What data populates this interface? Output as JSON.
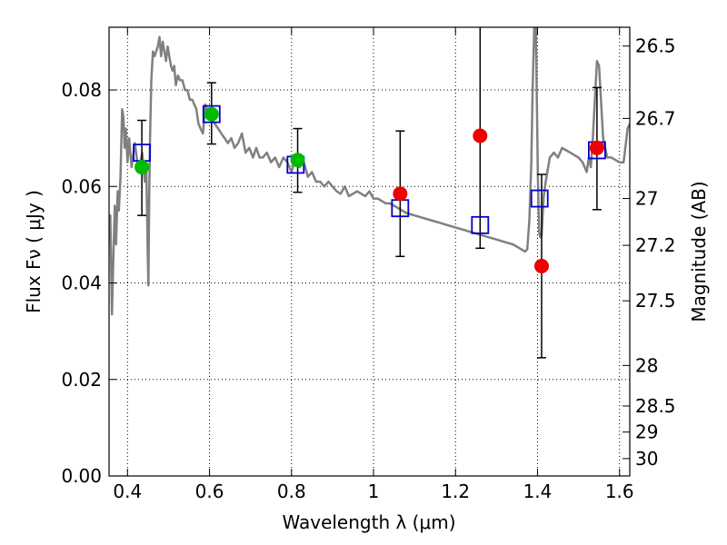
{
  "chart_data": {
    "type": "scatter",
    "xlabel": "Wavelength  λ (μm)",
    "ylabel": "Flux  Fν  ( μJy )",
    "ylabel_right": "Magnitude (AB)",
    "xlim": [
      0.355,
      1.625
    ],
    "ylim": [
      0.0,
      0.093
    ],
    "grid": true,
    "x_ticks": [
      0.4,
      0.6,
      0.8,
      1.0,
      1.2,
      1.4,
      1.6
    ],
    "x_tick_labels": [
      "0.4",
      "0.6",
      "0.8",
      "1",
      "1.2",
      "1.4",
      "1.6"
    ],
    "y_ticks": [
      0.0,
      0.02,
      0.04,
      0.06,
      0.08
    ],
    "y_tick_labels": [
      "0.00",
      "0.02",
      "0.04",
      "0.06",
      "0.08"
    ],
    "mag_ticks": [
      {
        "label": "26.5",
        "flux": 0.0891
      },
      {
        "label": "26.7",
        "flux": 0.0741
      },
      {
        "label": "27",
        "flux": 0.0575
      },
      {
        "label": "27.2",
        "flux": 0.0478
      },
      {
        "label": "27.5",
        "flux": 0.0363
      },
      {
        "label": "28",
        "flux": 0.0229
      },
      {
        "label": "28.5",
        "flux": 0.0145
      },
      {
        "label": "29",
        "flux": 0.0091
      },
      {
        "label": "30",
        "flux": 0.0036
      }
    ],
    "series": [
      {
        "name": "template_sed",
        "kind": "line",
        "color": "#808080",
        "x": [
          0.355,
          0.358,
          0.362,
          0.366,
          0.369,
          0.372,
          0.376,
          0.379,
          0.383,
          0.387,
          0.39,
          0.393,
          0.396,
          0.4,
          0.404,
          0.41,
          0.418,
          0.427,
          0.436,
          0.442,
          0.446,
          0.449,
          0.451,
          0.453,
          0.455,
          0.458,
          0.462,
          0.466,
          0.47,
          0.474,
          0.478,
          0.482,
          0.486,
          0.49,
          0.494,
          0.498,
          0.502,
          0.506,
          0.51,
          0.514,
          0.518,
          0.523,
          0.528,
          0.534,
          0.54,
          0.546,
          0.552,
          0.558,
          0.563,
          0.568,
          0.573,
          0.578,
          0.584,
          0.59,
          0.597,
          0.605,
          0.613,
          0.621,
          0.629,
          0.637,
          0.645,
          0.653,
          0.661,
          0.67,
          0.679,
          0.688,
          0.697,
          0.706,
          0.714,
          0.722,
          0.73,
          0.74,
          0.75,
          0.76,
          0.77,
          0.78,
          0.79,
          0.8,
          0.81,
          0.82,
          0.83,
          0.84,
          0.85,
          0.86,
          0.87,
          0.88,
          0.89,
          0.9,
          0.91,
          0.92,
          0.93,
          0.94,
          0.95,
          0.96,
          0.97,
          0.98,
          0.99,
          1.0,
          1.01,
          1.02,
          1.03,
          1.04,
          1.05,
          1.06,
          1.08,
          1.1,
          1.12,
          1.14,
          1.16,
          1.18,
          1.2,
          1.22,
          1.24,
          1.26,
          1.28,
          1.3,
          1.32,
          1.34,
          1.36,
          1.37,
          1.375,
          1.38,
          1.385,
          1.388,
          1.392,
          1.396,
          1.398,
          1.401,
          1.404,
          1.407,
          1.41,
          1.415,
          1.42,
          1.43,
          1.44,
          1.45,
          1.46,
          1.47,
          1.48,
          1.49,
          1.5,
          1.51,
          1.52,
          1.525,
          1.53,
          1.535,
          1.54,
          1.545,
          1.55,
          1.56,
          1.57,
          1.58,
          1.59,
          1.6,
          1.61,
          1.62,
          1.625
        ],
        "y": [
          0.053,
          0.054,
          0.0335,
          0.047,
          0.056,
          0.048,
          0.059,
          0.055,
          0.062,
          0.076,
          0.0745,
          0.068,
          0.072,
          0.065,
          0.07,
          0.064,
          0.069,
          0.063,
          0.067,
          0.061,
          0.063,
          0.048,
          0.0395,
          0.058,
          0.07,
          0.082,
          0.088,
          0.087,
          0.088,
          0.089,
          0.091,
          0.087,
          0.09,
          0.088,
          0.086,
          0.089,
          0.087,
          0.085,
          0.084,
          0.085,
          0.081,
          0.083,
          0.082,
          0.082,
          0.08,
          0.08,
          0.078,
          0.078,
          0.077,
          0.076,
          0.073,
          0.072,
          0.071,
          0.077,
          0.075,
          0.074,
          0.073,
          0.072,
          0.071,
          0.07,
          0.069,
          0.07,
          0.068,
          0.069,
          0.071,
          0.067,
          0.068,
          0.066,
          0.068,
          0.066,
          0.066,
          0.067,
          0.065,
          0.066,
          0.064,
          0.066,
          0.065,
          0.063,
          0.066,
          0.064,
          0.065,
          0.062,
          0.063,
          0.061,
          0.061,
          0.06,
          0.061,
          0.06,
          0.059,
          0.0585,
          0.06,
          0.058,
          0.0585,
          0.059,
          0.0585,
          0.058,
          0.059,
          0.0575,
          0.0575,
          0.057,
          0.0565,
          0.0565,
          0.056,
          0.0555,
          0.0545,
          0.054,
          0.0535,
          0.053,
          0.0525,
          0.052,
          0.0515,
          0.051,
          0.0505,
          0.05,
          0.0495,
          0.049,
          0.0485,
          0.048,
          0.047,
          0.0465,
          0.047,
          0.053,
          0.065,
          0.08,
          0.093,
          0.093,
          0.08,
          0.062,
          0.0505,
          0.0495,
          0.05,
          0.058,
          0.061,
          0.066,
          0.067,
          0.066,
          0.068,
          0.0675,
          0.067,
          0.0665,
          0.066,
          0.065,
          0.063,
          0.066,
          0.064,
          0.07,
          0.078,
          0.086,
          0.085,
          0.07,
          0.066,
          0.066,
          0.0655,
          0.065,
          0.065,
          0.072,
          0.073
        ]
      },
      {
        "name": "observed_flux",
        "kind": "square",
        "color": "#0000cc",
        "x": [
          0.435,
          0.605,
          0.81,
          1.065,
          1.26,
          1.405,
          1.545
        ],
        "y": [
          0.067,
          0.075,
          0.0645,
          0.0555,
          0.052,
          0.0575,
          0.0675
        ]
      },
      {
        "name": "model_points_green",
        "kind": "circle",
        "color": "#00bb00",
        "x": [
          0.435,
          0.605,
          0.815
        ],
        "y": [
          0.064,
          0.075,
          0.0655
        ]
      },
      {
        "name": "model_points_red",
        "kind": "circle",
        "color": "#ee0000",
        "x": [
          1.065,
          1.26,
          1.41,
          1.545
        ],
        "y": [
          0.0585,
          0.0705,
          0.0435,
          0.068
        ]
      }
    ],
    "error_bars": [
      {
        "x": 0.435,
        "y": 0.0638,
        "ylow": 0.054,
        "yhigh": 0.0737
      },
      {
        "x": 0.605,
        "y": 0.075,
        "ylow": 0.0688,
        "yhigh": 0.0815
      },
      {
        "x": 0.815,
        "y": 0.0655,
        "ylow": 0.0588,
        "yhigh": 0.072
      },
      {
        "x": 1.065,
        "y": 0.0585,
        "ylow": 0.0455,
        "yhigh": 0.0715
      },
      {
        "x": 1.26,
        "y": 0.0705,
        "ylow": 0.0472,
        "yhigh": 0.094
      },
      {
        "x": 1.41,
        "y": 0.0435,
        "ylow": 0.0245,
        "yhigh": 0.0625
      },
      {
        "x": 1.545,
        "y": 0.068,
        "ylow": 0.0552,
        "yhigh": 0.0805
      }
    ]
  }
}
